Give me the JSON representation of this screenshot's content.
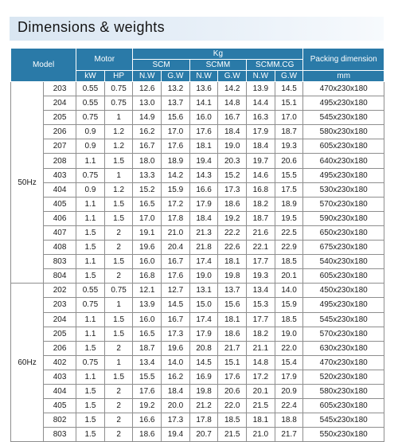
{
  "title": "Dimensions & weights",
  "table": {
    "headers": {
      "model": "Model",
      "motor": "Motor",
      "kg": "Kg",
      "scm": "SCM",
      "scmm": "SCMM",
      "scmmcg": "SCMM.CG",
      "packing": "Packing dimension",
      "kw": "kW",
      "hp": "HP",
      "nw1": "N.W",
      "gw1": "G.W",
      "nw2": "N.W",
      "gw2": "G.W",
      "nw3": "N.W",
      "gw3": "G.W",
      "mm": "mm"
    },
    "groups": [
      {
        "hz": "50Hz",
        "rows": [
          [
            "203",
            "0.55",
            "0.75",
            "12.6",
            "13.2",
            "13.6",
            "14.2",
            "13.9",
            "14.5",
            "470x230x180"
          ],
          [
            "204",
            "0.55",
            "0.75",
            "13.0",
            "13.7",
            "14.1",
            "14.8",
            "14.4",
            "15.1",
            "495x230x180"
          ],
          [
            "205",
            "0.75",
            "1",
            "14.9",
            "15.6",
            "16.0",
            "16.7",
            "16.3",
            "17.0",
            "545x230x180"
          ],
          [
            "206",
            "0.9",
            "1.2",
            "16.2",
            "17.0",
            "17.6",
            "18.4",
            "17.9",
            "18.7",
            "580x230x180"
          ],
          [
            "207",
            "0.9",
            "1.2",
            "16.7",
            "17.6",
            "18.1",
            "19.0",
            "18.4",
            "19.3",
            "605x230x180"
          ],
          [
            "208",
            "1.1",
            "1.5",
            "18.0",
            "18.9",
            "19.4",
            "20.3",
            "19.7",
            "20.6",
            "640x230x180"
          ],
          [
            "403",
            "0.75",
            "1",
            "13.3",
            "14.2",
            "14.3",
            "15.2",
            "14.6",
            "15.5",
            "495x230x180"
          ],
          [
            "404",
            "0.9",
            "1.2",
            "15.2",
            "15.9",
            "16.6",
            "17.3",
            "16.8",
            "17.5",
            "530x230x180"
          ],
          [
            "405",
            "1.1",
            "1.5",
            "16.5",
            "17.2",
            "17.9",
            "18.6",
            "18.2",
            "18.9",
            "570x230x180"
          ],
          [
            "406",
            "1.1",
            "1.5",
            "17.0",
            "17.8",
            "18.4",
            "19.2",
            "18.7",
            "19.5",
            "590x230x180"
          ],
          [
            "407",
            "1.5",
            "2",
            "19.1",
            "21.0",
            "21.3",
            "22.2",
            "21.6",
            "22.5",
            "650x230x180"
          ],
          [
            "408",
            "1.5",
            "2",
            "19.6",
            "20.4",
            "21.8",
            "22.6",
            "22.1",
            "22.9",
            "675x230x180"
          ],
          [
            "803",
            "1.1",
            "1.5",
            "16.0",
            "16.7",
            "17.4",
            "18.1",
            "17.7",
            "18.5",
            "540x230x180"
          ],
          [
            "804",
            "1.5",
            "2",
            "16.8",
            "17.6",
            "19.0",
            "19.8",
            "19.3",
            "20.1",
            "605x230x180"
          ]
        ]
      },
      {
        "hz": "60Hz",
        "rows": [
          [
            "202",
            "0.55",
            "0.75",
            "12.1",
            "12.7",
            "13.1",
            "13.7",
            "13.4",
            "14.0",
            "450x230x180"
          ],
          [
            "203",
            "0.75",
            "1",
            "13.9",
            "14.5",
            "15.0",
            "15.6",
            "15.3",
            "15.9",
            "495x230x180"
          ],
          [
            "204",
            "1.1",
            "1.5",
            "16.0",
            "16.7",
            "17.4",
            "18.1",
            "17.7",
            "18.5",
            "545x230x180"
          ],
          [
            "205",
            "1.1",
            "1.5",
            "16.5",
            "17.3",
            "17.9",
            "18.6",
            "18.2",
            "19.0",
            "570x230x180"
          ],
          [
            "206",
            "1.5",
            "2",
            "18.7",
            "19.6",
            "20.8",
            "21.7",
            "21.1",
            "22.0",
            "630x230x180"
          ],
          [
            "402",
            "0.75",
            "1",
            "13.4",
            "14.0",
            "14.5",
            "15.1",
            "14.8",
            "15.4",
            "470x230x180"
          ],
          [
            "403",
            "1.1",
            "1.5",
            "15.5",
            "16.2",
            "16.9",
            "17.6",
            "17.2",
            "17.9",
            "520x230x180"
          ],
          [
            "404",
            "1.5",
            "2",
            "17.6",
            "18.4",
            "19.8",
            "20.6",
            "20.1",
            "20.9",
            "580x230x180"
          ],
          [
            "405",
            "1.5",
            "2",
            "19.2",
            "20.0",
            "21.2",
            "22.0",
            "21.5",
            "22.4",
            "605x230x180"
          ],
          [
            "802",
            "1.5",
            "2",
            "16.6",
            "17.3",
            "17.8",
            "18.5",
            "18.1",
            "18.8",
            "545x230x180"
          ],
          [
            "803",
            "1.5",
            "2",
            "18.6",
            "19.4",
            "20.7",
            "21.5",
            "21.0",
            "21.7",
            "550x230x180"
          ]
        ]
      }
    ]
  }
}
